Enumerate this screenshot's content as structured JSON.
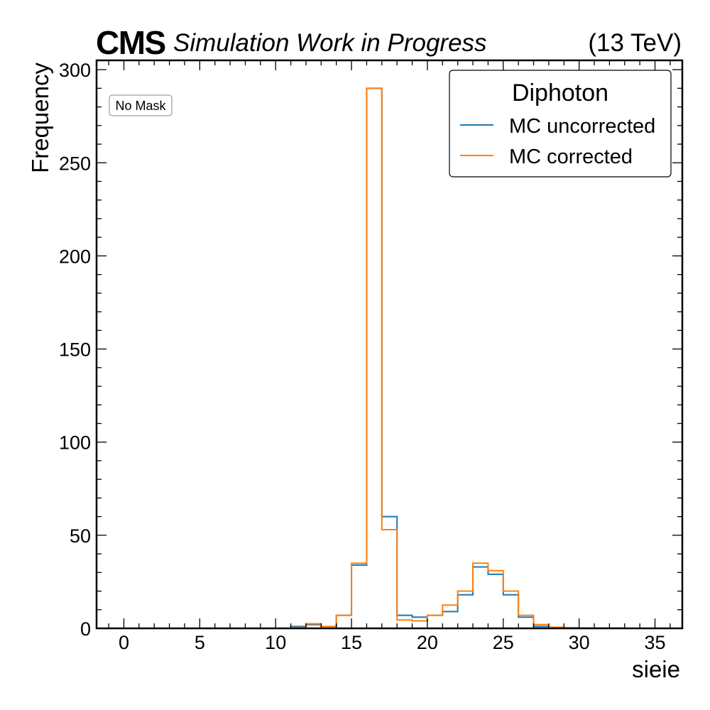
{
  "header": {
    "experiment": "CMS",
    "status": "Simulation Work in Progress",
    "energy": "(13 TeV)"
  },
  "annotation": {
    "text": "No Mask"
  },
  "legend": {
    "title": "Diphoton",
    "placement": "top-right"
  },
  "chart_data": {
    "type": "histogram",
    "xlabel": "sieie",
    "ylabel": "Frequency",
    "xlim": [
      -1.8,
      36.8
    ],
    "ylim": [
      0,
      305
    ],
    "xticks": [
      0,
      5,
      10,
      15,
      20,
      25,
      30,
      35
    ],
    "yticks": [
      0,
      50,
      100,
      150,
      200,
      250,
      300
    ],
    "grid": false,
    "bin_edges": [
      0,
      1,
      2,
      3,
      4,
      5,
      6,
      7,
      8,
      9,
      10,
      11,
      12,
      13,
      14,
      15,
      16,
      17,
      18,
      19,
      20,
      21,
      22,
      23,
      24,
      25,
      26,
      27,
      28,
      29,
      30,
      31,
      32,
      33,
      34,
      35
    ],
    "series": [
      {
        "name": "MC uncorrected",
        "color": "#1f77b4",
        "values": [
          0,
          0,
          0,
          0,
          0,
          0,
          0,
          0,
          0,
          0,
          0,
          1,
          2,
          1,
          7,
          34,
          290,
          60,
          7,
          6,
          7,
          9,
          18,
          33,
          29,
          18,
          6,
          1,
          0.5,
          0.3,
          0.2,
          0.2,
          0.1,
          0,
          0
        ]
      },
      {
        "name": "MC corrected",
        "color": "#ff7f0e",
        "values": [
          0,
          0,
          0,
          0,
          0,
          0,
          0,
          0,
          0,
          0,
          0,
          0.5,
          2.5,
          1,
          7,
          35,
          290,
          53,
          4.5,
          4,
          7,
          12.5,
          20,
          35,
          31,
          20,
          7,
          2,
          0.6,
          0.3,
          0.2,
          0.2,
          0.1,
          0,
          0
        ]
      }
    ]
  }
}
